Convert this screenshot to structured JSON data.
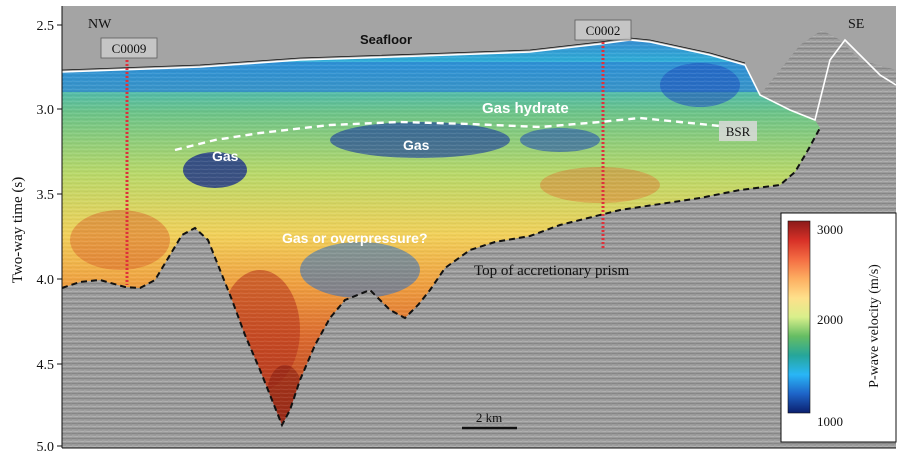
{
  "y_axis": {
    "label": "Two-way time (s)",
    "ticks": [
      "2.5",
      "3.0",
      "3.5",
      "4.0",
      "4.5",
      "5.0"
    ]
  },
  "labels": {
    "nw": "NW",
    "se": "SE",
    "seafloor": "Seafloor",
    "gas_hydrate": "Gas hydrate",
    "gas_left": "Gas",
    "gas_center": "Gas",
    "bsr": "BSR",
    "gas_overpressure": "Gas or overpressure?",
    "prism": "Top of accretionary prism"
  },
  "wells": [
    {
      "name": "C0009"
    },
    {
      "name": "C0002"
    }
  ],
  "scale_bar": {
    "label": "2 km"
  },
  "colorbar": {
    "title": "P-wave velocity (m/s)",
    "ticks": [
      "3000",
      "2000",
      "1000"
    ],
    "colors": [
      "#8b1a1a",
      "#d73027",
      "#f46d43",
      "#fdae61",
      "#fee08b",
      "#d9ef8b",
      "#66bd63",
      "#26a69a",
      "#29b6f6",
      "#1e64c8",
      "#0b1f6e"
    ]
  },
  "colors": {
    "background_seismic": "#9a9a9a",
    "well_line": "#e0303a",
    "boundary_dashed": "#111111",
    "bsr_dashed": "#ffffff"
  }
}
